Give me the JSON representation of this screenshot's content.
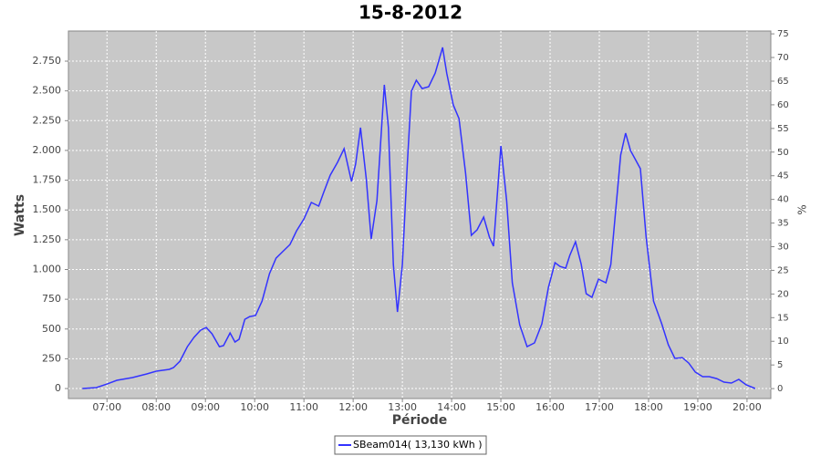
{
  "chart_data": {
    "type": "line",
    "title": "15-8-2012",
    "x_label": "Période",
    "y_label": "Watts",
    "y2_label": "%",
    "x": [
      "06:30",
      "06:47",
      "07:00",
      "07:12",
      "07:31",
      "07:48",
      "08:00",
      "08:16",
      "08:21",
      "08:29",
      "08:38",
      "08:46",
      "08:54",
      "09:01",
      "09:08",
      "09:17",
      "09:22",
      "09:30",
      "09:36",
      "09:41",
      "09:48",
      "09:54",
      "10:01",
      "10:09",
      "10:18",
      "10:26",
      "10:34",
      "10:43",
      "10:51",
      "11:00",
      "11:09",
      "11:18",
      "11:24",
      "11:32",
      "11:41",
      "11:49",
      "11:58",
      "12:03",
      "12:09",
      "12:16",
      "12:22",
      "12:29",
      "12:38",
      "12:43",
      "12:49",
      "12:54",
      "13:00",
      "13:06",
      "13:11",
      "13:17",
      "13:24",
      "13:32",
      "13:40",
      "13:49",
      "13:54",
      "14:02",
      "14:09",
      "14:17",
      "14:24",
      "14:31",
      "14:39",
      "14:46",
      "14:51",
      "15:00",
      "15:07",
      "15:14",
      "15:23",
      "15:32",
      "15:41",
      "15:50",
      "15:58",
      "16:06",
      "16:12",
      "16:19",
      "16:24",
      "16:31",
      "16:38",
      "16:44",
      "16:51",
      "16:59",
      "17:08",
      "17:14",
      "17:21",
      "17:26",
      "17:32",
      "17:38",
      "17:44",
      "17:50",
      "17:57",
      "18:06",
      "18:16",
      "18:24",
      "18:32",
      "18:41",
      "18:49",
      "18:57",
      "19:06",
      "19:14",
      "19:23",
      "19:32",
      "19:41",
      "19:50",
      "19:59",
      "20:10"
    ],
    "series": [
      {
        "name": "SBeam014( 13,130 kWh )",
        "color": "#3333ff",
        "values": [
          0,
          8,
          38,
          69,
          92,
          122,
          146,
          161,
          176,
          230,
          352,
          429,
          490,
          513,
          460,
          352,
          360,
          467,
          391,
          414,
          582,
          605,
          613,
          735,
          965,
          1095,
          1149,
          1210,
          1325,
          1425,
          1563,
          1532,
          1647,
          1792,
          1900,
          2015,
          1739,
          1884,
          2191,
          1762,
          1256,
          1578,
          2551,
          2191,
          1042,
          643,
          1042,
          1884,
          2497,
          2589,
          2520,
          2535,
          2650,
          2865,
          2650,
          2382,
          2267,
          1808,
          1287,
          1333,
          1440,
          1272,
          1195,
          2038,
          1578,
          889,
          536,
          352,
          383,
          544,
          850,
          1057,
          1026,
          1011,
          1118,
          1233,
          1042,
          797,
          766,
          919,
          889,
          1042,
          1578,
          1961,
          2145,
          1999,
          1923,
          1846,
          1272,
          735,
          544,
          368,
          253,
          260,
          214,
          138,
          100,
          100,
          84,
          54,
          46,
          77,
          31,
          0
        ]
      }
    ],
    "xlim": [
      "06:13",
      "20:29"
    ],
    "xticks": [
      "07:00",
      "08:00",
      "09:00",
      "10:00",
      "11:00",
      "12:00",
      "13:00",
      "14:00",
      "15:00",
      "16:00",
      "17:00",
      "18:00",
      "19:00",
      "20:00"
    ],
    "ylim": [
      -84,
      3003
    ],
    "yticks": [
      0,
      250,
      500,
      750,
      {
        "value": 1000,
        "label": "1.000"
      },
      {
        "value": 1250,
        "label": "1.250"
      },
      {
        "value": 1500,
        "label": "1.500"
      },
      {
        "value": 1750,
        "label": "1.750"
      },
      {
        "value": 2000,
        "label": "2.000"
      },
      {
        "value": 2250,
        "label": "2.250"
      },
      {
        "value": 2500,
        "label": "2.500"
      },
      {
        "value": 2750,
        "label": "2.750"
      }
    ],
    "y2lim": [
      -2.1,
      75.6
    ],
    "y2ticks": [
      0,
      5,
      10,
      15,
      20,
      25,
      30,
      35,
      40,
      45,
      50,
      55,
      60,
      65,
      70,
      75
    ],
    "grid": true,
    "background": "#c8c8c8",
    "legend": "bottom"
  }
}
